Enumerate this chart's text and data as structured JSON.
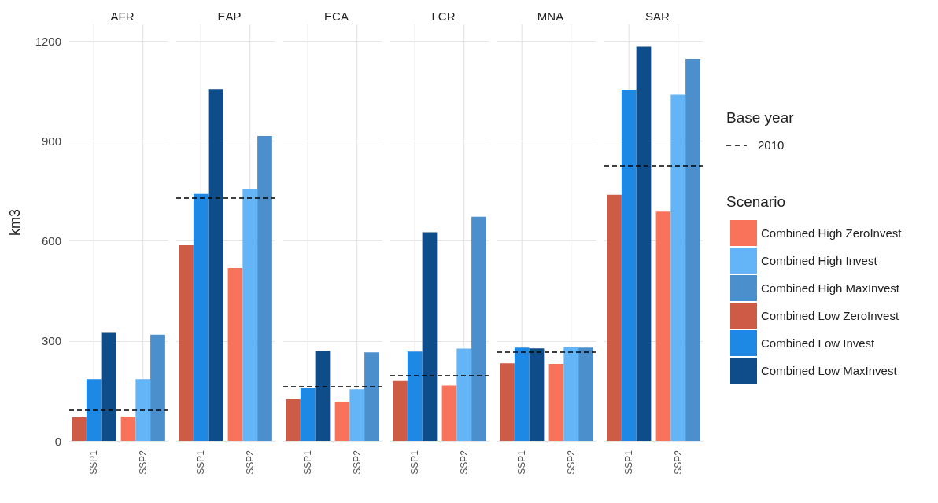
{
  "chart_data": [
    {
      "type": "bar",
      "title": "AFR",
      "ylabel": "km3",
      "categories": [
        "SSP1",
        "SSP2"
      ],
      "ylim": [
        0,
        1250
      ],
      "yticks": [
        0,
        300,
        600,
        900,
        1200
      ],
      "grid": true,
      "series": [
        {
          "color": "#f8735a",
          "values": [
            null,
            73
          ]
        },
        {
          "color": "#63b5f7",
          "values": [
            null,
            186
          ]
        },
        {
          "color": "#4b8fcc",
          "values": [
            null,
            319
          ]
        },
        {
          "color": "#cd5b45",
          "values": [
            71,
            null
          ]
        },
        {
          "color": "#1e88e5",
          "values": [
            186,
            null
          ]
        },
        {
          "color": "#0f4d8a",
          "values": [
            324,
            null
          ]
        }
      ],
      "ref_lines": [
        {
          "axis": "y",
          "value": 93,
          "color": "#000000",
          "line_style": "dashed"
        }
      ]
    },
    {
      "type": "bar",
      "title": "EAP",
      "categories": [
        "SSP1",
        "SSP2"
      ],
      "ylim": [
        0,
        1250
      ],
      "yticks": [
        0,
        300,
        600,
        900,
        1200
      ],
      "grid": true,
      "tick_labels": "x",
      "series": [
        {
          "color": "#f8735a",
          "values": [
            null,
            519
          ]
        },
        {
          "color": "#63b5f7",
          "values": [
            null,
            757
          ]
        },
        {
          "color": "#4b8fcc",
          "values": [
            null,
            915
          ]
        },
        {
          "color": "#cd5b45",
          "values": [
            587,
            null
          ]
        },
        {
          "color": "#1e88e5",
          "values": [
            741,
            null
          ]
        },
        {
          "color": "#0f4d8a",
          "values": [
            1056,
            null
          ]
        }
      ],
      "ref_lines": [
        {
          "axis": "y",
          "value": 729,
          "color": "#000000",
          "line_style": "dashed"
        }
      ]
    },
    {
      "type": "bar",
      "title": "ECA",
      "categories": [
        "SSP1",
        "SSP2"
      ],
      "ylim": [
        0,
        1250
      ],
      "yticks": [
        0,
        300,
        600,
        900,
        1200
      ],
      "grid": true,
      "tick_labels": "x",
      "series": [
        {
          "color": "#f8735a",
          "values": [
            null,
            118
          ]
        },
        {
          "color": "#63b5f7",
          "values": [
            null,
            155
          ]
        },
        {
          "color": "#4b8fcc",
          "values": [
            null,
            266
          ]
        },
        {
          "color": "#cd5b45",
          "values": [
            125,
            null
          ]
        },
        {
          "color": "#1e88e5",
          "values": [
            158,
            null
          ]
        },
        {
          "color": "#0f4d8a",
          "values": [
            270,
            null
          ]
        }
      ],
      "ref_lines": [
        {
          "axis": "y",
          "value": 164,
          "color": "#000000",
          "line_style": "dashed"
        }
      ]
    },
    {
      "type": "bar",
      "title": "LCR",
      "categories": [
        "SSP1",
        "SSP2"
      ],
      "ylim": [
        0,
        1250
      ],
      "yticks": [
        0,
        300,
        600,
        900,
        1200
      ],
      "grid": true,
      "tick_labels": "x",
      "series": [
        {
          "color": "#f8735a",
          "values": [
            null,
            166
          ]
        },
        {
          "color": "#63b5f7",
          "values": [
            null,
            277
          ]
        },
        {
          "color": "#4b8fcc",
          "values": [
            null,
            673
          ]
        },
        {
          "color": "#cd5b45",
          "values": [
            180,
            null
          ]
        },
        {
          "color": "#1e88e5",
          "values": [
            268,
            null
          ]
        },
        {
          "color": "#0f4d8a",
          "values": [
            626,
            null
          ]
        }
      ],
      "ref_lines": [
        {
          "axis": "y",
          "value": 196,
          "color": "#000000",
          "line_style": "dashed"
        }
      ]
    },
    {
      "type": "bar",
      "title": "MNA",
      "categories": [
        "SSP1",
        "SSP2"
      ],
      "ylim": [
        0,
        1250
      ],
      "yticks": [
        0,
        300,
        600,
        900,
        1200
      ],
      "grid": true,
      "tick_labels": "x",
      "series": [
        {
          "color": "#f8735a",
          "values": [
            null,
            231
          ]
        },
        {
          "color": "#63b5f7",
          "values": [
            null,
            282
          ]
        },
        {
          "color": "#4b8fcc",
          "values": [
            null,
            280
          ]
        },
        {
          "color": "#cd5b45",
          "values": [
            233,
            null
          ]
        },
        {
          "color": "#1e88e5",
          "values": [
            280,
            null
          ]
        },
        {
          "color": "#0f4d8a",
          "values": [
            278,
            null
          ]
        }
      ],
      "ref_lines": [
        {
          "axis": "y",
          "value": 268,
          "color": "#000000",
          "line_style": "dashed"
        }
      ]
    },
    {
      "type": "bar",
      "title": "SAR",
      "categories": [
        "SSP1",
        "SSP2"
      ],
      "ylim": [
        0,
        1250
      ],
      "yticks": [
        0,
        300,
        600,
        900,
        1200
      ],
      "grid": true,
      "tick_labels": "x",
      "legend": "right",
      "legend_title": "Scenario",
      "annotations": [
        "Base year",
        "2010"
      ],
      "series": [
        {
          "name": "Combined High ZeroInvest",
          "color": "#f8735a",
          "values": [
            null,
            688
          ]
        },
        {
          "name": "Combined High Invest",
          "color": "#63b5f7",
          "values": [
            null,
            1039
          ]
        },
        {
          "name": "Combined High MaxInvest",
          "color": "#4b8fcc",
          "values": [
            null,
            1146
          ]
        },
        {
          "name": "Combined Low ZeroInvest",
          "color": "#cd5b45",
          "values": [
            739,
            null
          ]
        },
        {
          "name": "Combined Low Invest",
          "color": "#1e88e5",
          "values": [
            1054,
            null
          ]
        },
        {
          "name": "Combined Low MaxInvest",
          "color": "#0f4d8a",
          "values": [
            1183,
            null
          ]
        }
      ],
      "ref_lines": [
        {
          "axis": "y",
          "value": 827,
          "color": "#000000",
          "line_style": "dashed"
        }
      ]
    }
  ]
}
